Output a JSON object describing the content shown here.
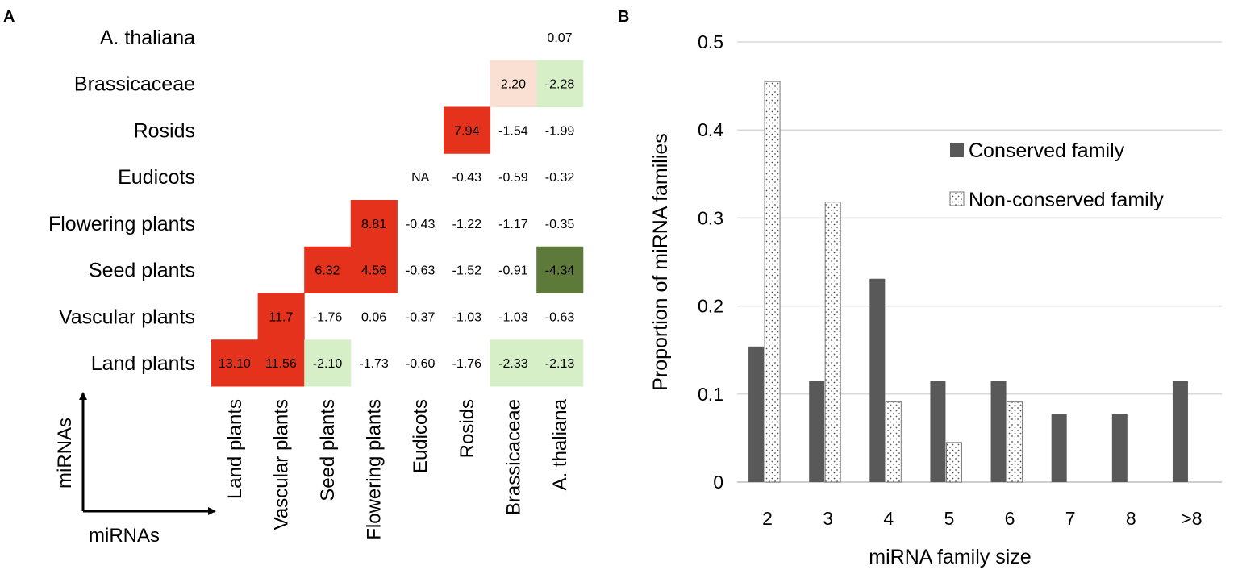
{
  "chart_data": [
    {
      "type": "heatmap",
      "panel_label": "A",
      "rows": [
        "A. thaliana",
        "Brassicaceae",
        "Rosids",
        "Eudicots",
        "Flowering plants",
        "Seed plants",
        "Vascular plants",
        "Land plants"
      ],
      "columns": [
        "Land plants",
        "Vascular plants",
        "Seed plants",
        "Flowering plants",
        "Eudicots",
        "Rosids",
        "Brassicaceae",
        "A. thaliana"
      ],
      "axis_arrow_labels": {
        "vertical": "miRNAs",
        "horizontal": "miRNAs"
      },
      "cells": [
        {
          "row": "A. thaliana",
          "col": "A. thaliana",
          "value": "0.07",
          "color": "#ffffff"
        },
        {
          "row": "Brassicaceae",
          "col": "Brassicaceae",
          "value": "2.20",
          "color": "#f9e0d2"
        },
        {
          "row": "Brassicaceae",
          "col": "A. thaliana",
          "value": "-2.28",
          "color": "#d6efc6"
        },
        {
          "row": "Rosids",
          "col": "Rosids",
          "value": "7.94",
          "color": "#e4321c"
        },
        {
          "row": "Rosids",
          "col": "Brassicaceae",
          "value": "-1.54",
          "color": "#ffffff"
        },
        {
          "row": "Rosids",
          "col": "A. thaliana",
          "value": "-1.99",
          "color": "#ffffff"
        },
        {
          "row": "Eudicots",
          "col": "Eudicots",
          "value": "NA",
          "color": "#ffffff"
        },
        {
          "row": "Eudicots",
          "col": "Rosids",
          "value": "-0.43",
          "color": "#ffffff"
        },
        {
          "row": "Eudicots",
          "col": "Brassicaceae",
          "value": "-0.59",
          "color": "#ffffff"
        },
        {
          "row": "Eudicots",
          "col": "A. thaliana",
          "value": "-0.32",
          "color": "#ffffff"
        },
        {
          "row": "Flowering plants",
          "col": "Flowering plants",
          "value": "8.81",
          "color": "#e4321c"
        },
        {
          "row": "Flowering plants",
          "col": "Eudicots",
          "value": "-0.43",
          "color": "#ffffff"
        },
        {
          "row": "Flowering plants",
          "col": "Rosids",
          "value": "-1.22",
          "color": "#ffffff"
        },
        {
          "row": "Flowering plants",
          "col": "Brassicaceae",
          "value": "-1.17",
          "color": "#ffffff"
        },
        {
          "row": "Flowering plants",
          "col": "A. thaliana",
          "value": "-0.35",
          "color": "#ffffff"
        },
        {
          "row": "Seed plants",
          "col": "Seed plants",
          "value": "6.32",
          "color": "#e4321c"
        },
        {
          "row": "Seed plants",
          "col": "Flowering plants",
          "value": "4.56",
          "color": "#e4321c"
        },
        {
          "row": "Seed plants",
          "col": "Eudicots",
          "value": "-0.63",
          "color": "#ffffff"
        },
        {
          "row": "Seed plants",
          "col": "Rosids",
          "value": "-1.52",
          "color": "#ffffff"
        },
        {
          "row": "Seed plants",
          "col": "Brassicaceae",
          "value": "-0.91",
          "color": "#ffffff"
        },
        {
          "row": "Seed plants",
          "col": "A. thaliana",
          "value": "-4.34",
          "color": "#5e7a3a"
        },
        {
          "row": "Vascular plants",
          "col": "Vascular plants",
          "value": "11.7",
          "color": "#e4321c"
        },
        {
          "row": "Vascular plants",
          "col": "Seed plants",
          "value": "-1.76",
          "color": "#ffffff"
        },
        {
          "row": "Vascular plants",
          "col": "Flowering plants",
          "value": "0.06",
          "color": "#ffffff"
        },
        {
          "row": "Vascular plants",
          "col": "Eudicots",
          "value": "-0.37",
          "color": "#ffffff"
        },
        {
          "row": "Vascular plants",
          "col": "Rosids",
          "value": "-1.03",
          "color": "#ffffff"
        },
        {
          "row": "Vascular plants",
          "col": "Brassicaceae",
          "value": "-1.03",
          "color": "#ffffff"
        },
        {
          "row": "Vascular plants",
          "col": "A. thaliana",
          "value": "-0.63",
          "color": "#ffffff"
        },
        {
          "row": "Land plants",
          "col": "Land plants",
          "value": "13.10",
          "color": "#e4321c"
        },
        {
          "row": "Land plants",
          "col": "Vascular plants",
          "value": "11.56",
          "color": "#e4321c"
        },
        {
          "row": "Land plants",
          "col": "Seed plants",
          "value": "-2.10",
          "color": "#d6efc6"
        },
        {
          "row": "Land plants",
          "col": "Flowering plants",
          "value": "-1.73",
          "color": "#ffffff"
        },
        {
          "row": "Land plants",
          "col": "Eudicots",
          "value": "-0.60",
          "color": "#ffffff"
        },
        {
          "row": "Land plants",
          "col": "Rosids",
          "value": "-1.76",
          "color": "#ffffff"
        },
        {
          "row": "Land plants",
          "col": "Brassicaceae",
          "value": "-2.33",
          "color": "#d6efc6"
        },
        {
          "row": "Land plants",
          "col": "A. thaliana",
          "value": "-2.13",
          "color": "#d6efc6"
        }
      ]
    },
    {
      "type": "bar",
      "panel_label": "B",
      "categories": [
        "2",
        "3",
        "4",
        "5",
        "6",
        "7",
        "8",
        ">8"
      ],
      "series": [
        {
          "name": "Conserved family",
          "color": "#595959",
          "values": [
            0.154,
            0.115,
            0.231,
            0.115,
            0.115,
            0.077,
            0.077,
            0.115
          ]
        },
        {
          "name": "Non-conserved family",
          "color": "#ffffff",
          "values": [
            0.455,
            0.318,
            0.091,
            0.045,
            0.091,
            0,
            0,
            0
          ]
        }
      ],
      "xlabel": "miRNA family size",
      "ylabel": "Proportion of miRNA families",
      "ylim": [
        0,
        0.5
      ],
      "yticks": [
        "0",
        "0.1",
        "0.2",
        "0.3",
        "0.4",
        "0.5"
      ],
      "grid": true,
      "legend_position": "top-right"
    }
  ]
}
